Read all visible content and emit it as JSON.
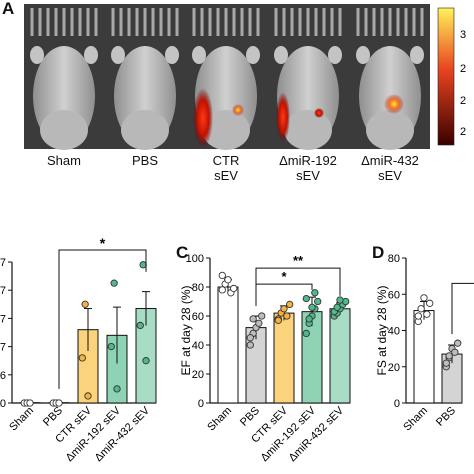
{
  "panel_a": {
    "letter": "A",
    "conditions": [
      {
        "line1": "Sham",
        "line2": ""
      },
      {
        "line1": "PBS",
        "line2": ""
      },
      {
        "line1": "CTR",
        "line2": "sEV"
      },
      {
        "line1": "ΔmiR-192",
        "line2": "sEV"
      },
      {
        "line1": "ΔmiR-432",
        "line2": "sEV"
      }
    ],
    "colorbar_ticks": [
      "3",
      "2",
      "2",
      "2"
    ],
    "colors": {
      "bar_top": "#fff25a",
      "bar_mid": "#e8431f",
      "bar_bottom": "#3a0000"
    }
  },
  "panel_b": {
    "tick_labels": [
      "7",
      "7",
      "7",
      "7",
      "6",
      "0"
    ],
    "categories": [
      "Sham",
      "PBS",
      "CTR sEV",
      "ΔmiR-192 sEV",
      "ΔmiR-432 sEV"
    ],
    "significance": "*"
  },
  "panel_c": {
    "letter": "C",
    "significance": [
      "**",
      "*"
    ]
  },
  "panel_d": {
    "letter": "D",
    "significance": []
  },
  "chart_data": [
    {
      "type": "bar",
      "categories": [
        "Sham",
        "PBS",
        "CTR sEV",
        "ΔmiR-192 sEV",
        "ΔmiR-432 sEV"
      ],
      "values": [
        0.02,
        0.02,
        5.2,
        4.8,
        6.7
      ],
      "errors": [
        0.01,
        0.01,
        1.5,
        2.0,
        1.2
      ],
      "points": [
        [
          0.0,
          0.0,
          0.0
        ],
        [
          0.0,
          0.0,
          0.0
        ],
        [
          3.2,
          7.0,
          0.5
        ],
        [
          4.0,
          8.5,
          1.0
        ],
        [
          5.5,
          9.8,
          3.0
        ]
      ],
      "ylim": [
        0,
        10
      ],
      "colors": [
        "#ffffff",
        "#d4d4d4",
        "#fbd37c",
        "#8fd3b5",
        "#a9dcc5"
      ],
      "point_colors": [
        "#ffffff",
        "#ffffff",
        "#f5b041",
        "#4fb98b",
        "#4fb98b"
      ]
    },
    {
      "type": "bar",
      "categories": [
        "Sham",
        "PBS",
        "CTR sEV",
        "ΔmiR-192 sEV",
        "ΔmiR-432 sEV"
      ],
      "values": [
        80,
        52,
        62,
        63,
        65
      ],
      "errors": [
        5,
        8,
        5,
        10,
        4
      ],
      "points": [
        [
          78,
          82,
          85,
          76,
          79,
          88
        ],
        [
          40,
          48,
          52,
          55,
          60,
          45,
          58
        ],
        [
          58,
          62,
          65,
          60,
          68,
          57
        ],
        [
          48,
          55,
          60,
          65,
          70,
          72,
          58,
          66,
          76
        ],
        [
          60,
          62,
          65,
          68,
          70,
          63,
          66,
          71
        ]
      ],
      "ylim": [
        0,
        100
      ],
      "yticks": [
        "0",
        "20",
        "40",
        "60",
        "80",
        "100"
      ],
      "ylabel": "EF at day 28 (%)",
      "colors": [
        "#ffffff",
        "#d4d4d4",
        "#fbd37c",
        "#8fd3b5",
        "#a9dcc5"
      ],
      "point_colors": [
        "#ffffff",
        "#bdbdbd",
        "#f5b041",
        "#4fb98b",
        "#4fb98b"
      ]
    },
    {
      "type": "bar",
      "categories": [
        "Sham",
        "PBS"
      ],
      "values": [
        51,
        27
      ],
      "errors": [
        5,
        5
      ],
      "points": [
        [
          45,
          52,
          58,
          49,
          55,
          48
        ],
        [
          20,
          25,
          30,
          28,
          33,
          22,
          26
        ]
      ],
      "ylim": [
        0,
        80
      ],
      "yticks": [
        "0",
        "20",
        "40",
        "60",
        "80"
      ],
      "ylabel": "FS at day 28 (%)",
      "colors": [
        "#ffffff",
        "#d4d4d4"
      ],
      "point_colors": [
        "#ffffff",
        "#bdbdbd"
      ]
    }
  ]
}
